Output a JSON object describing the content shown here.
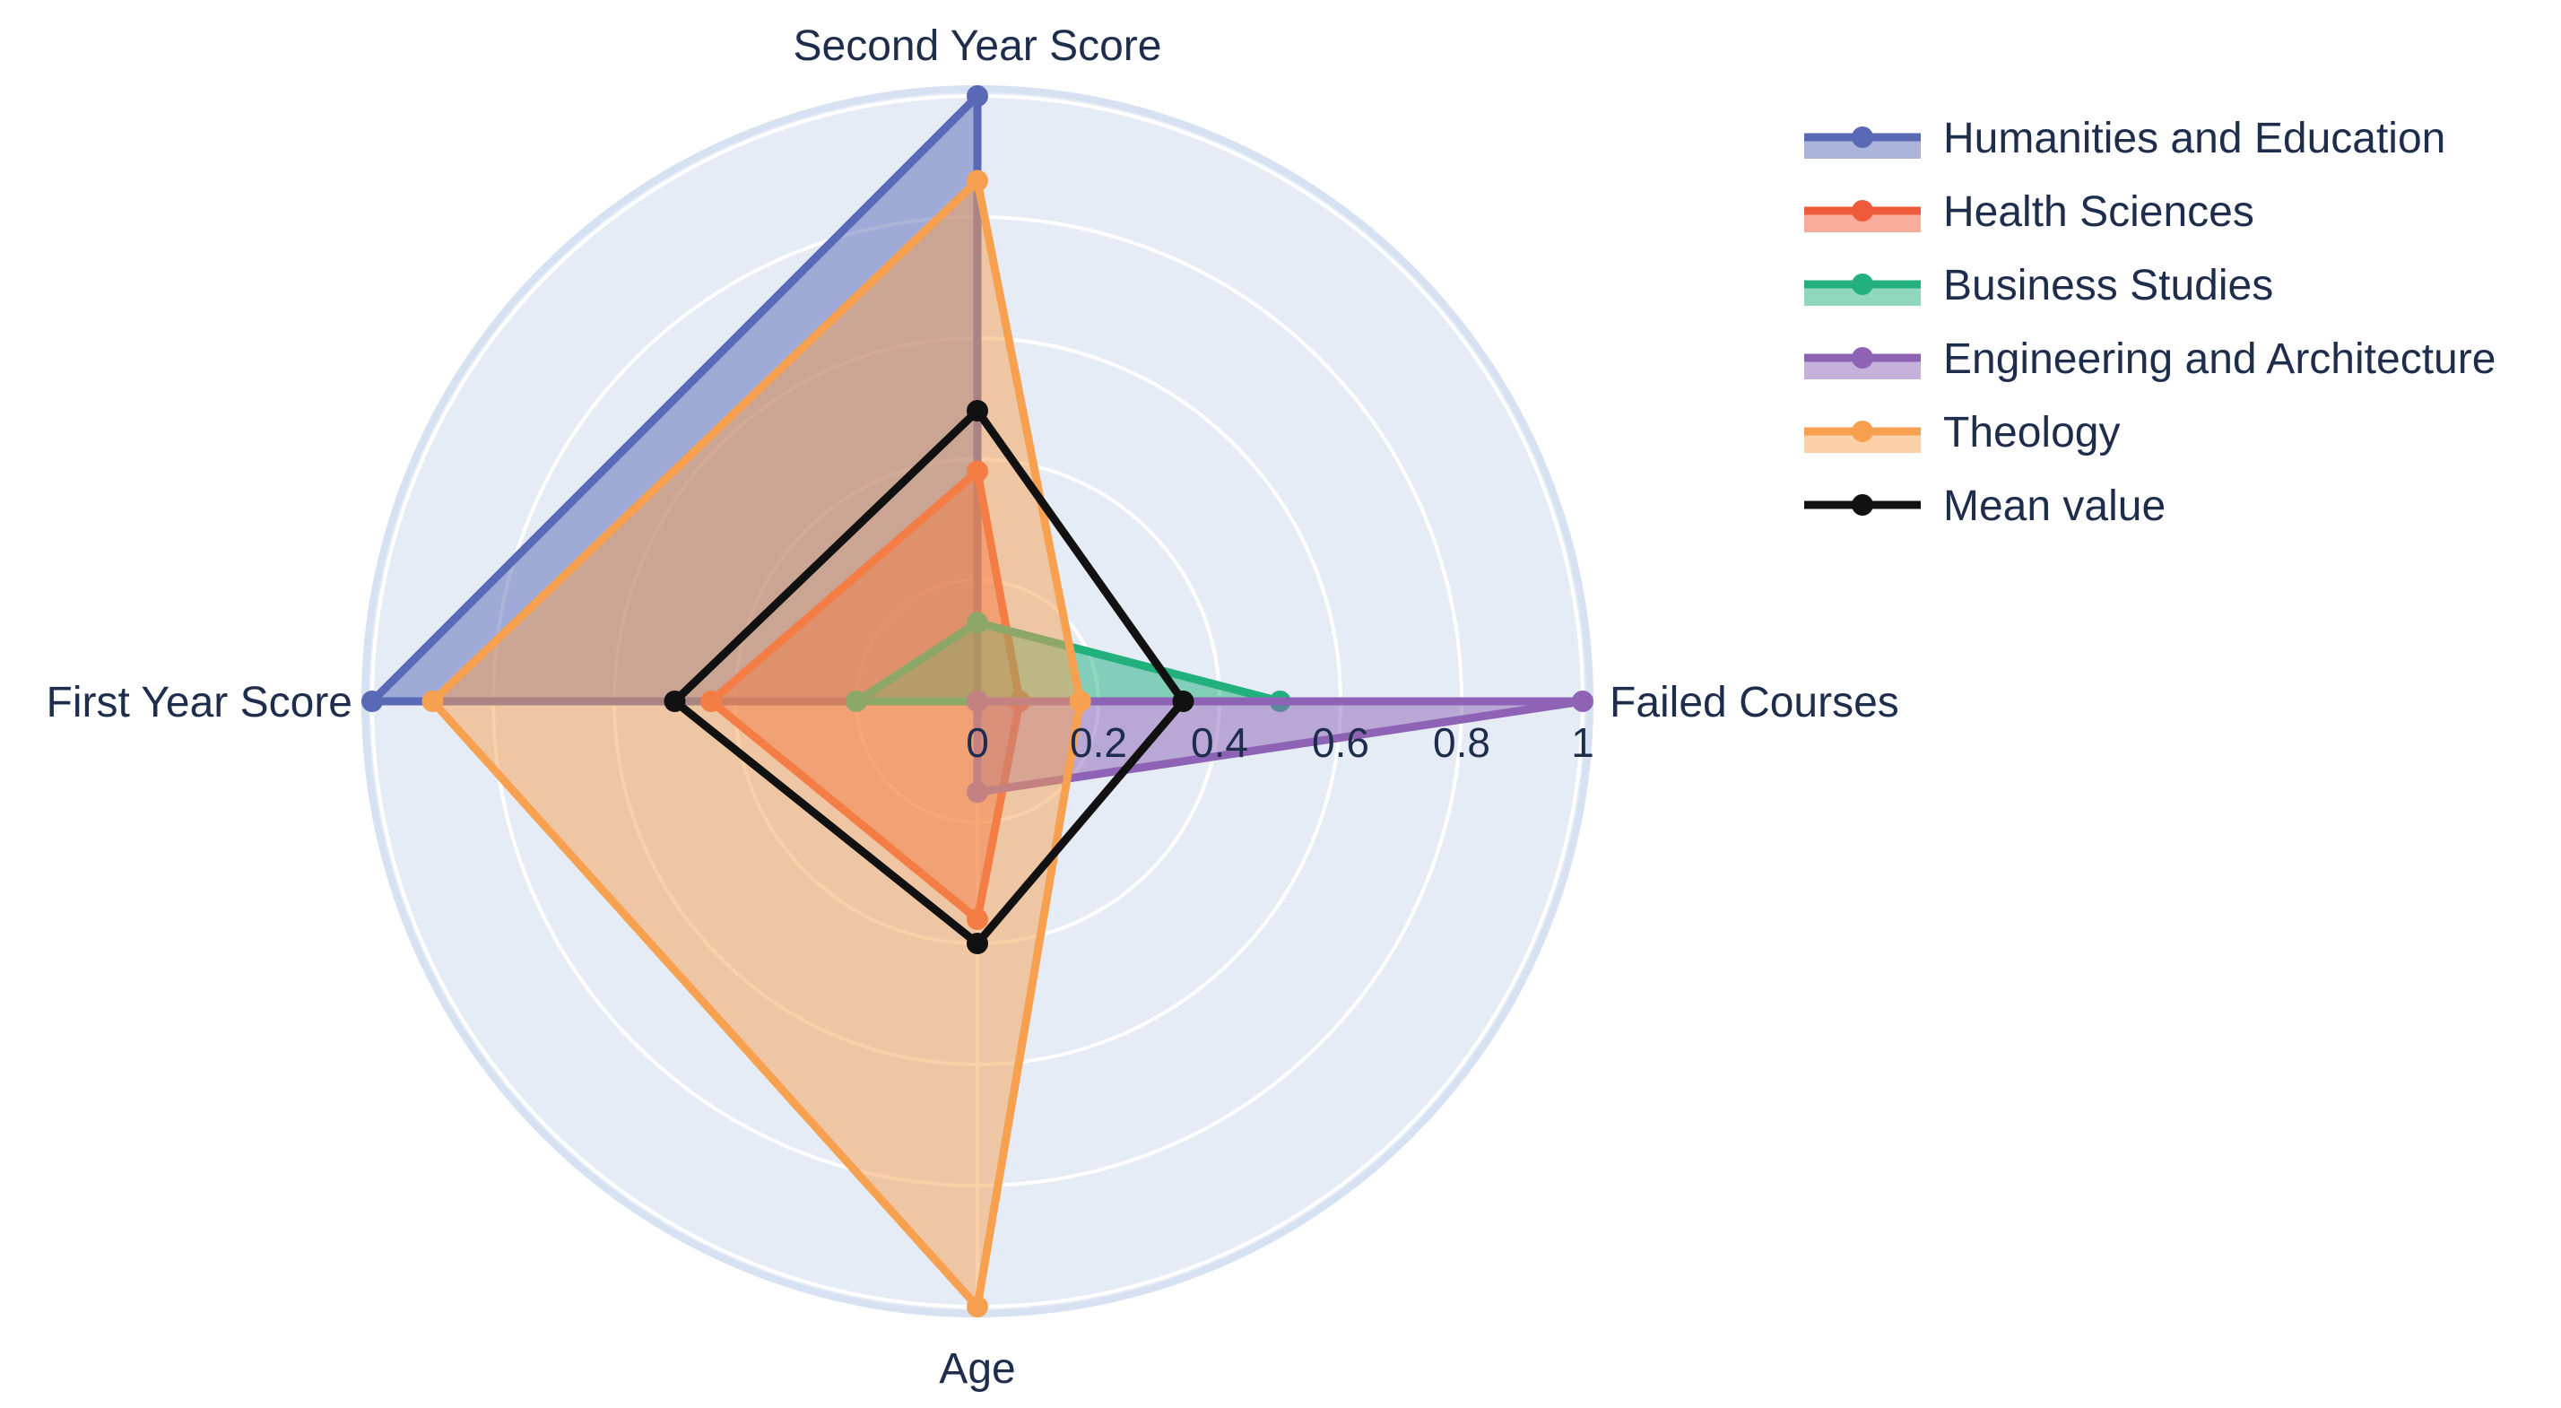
{
  "chart_data": {
    "type": "radar",
    "axes": [
      "Failed Courses",
      "Second Year Score",
      "First Year Score",
      "Age"
    ],
    "radial_range": [
      0,
      1
    ],
    "radial_ticks": [
      "0",
      "0.2",
      "0.4",
      "0.6",
      "0.8",
      "1"
    ],
    "legend_position": "top-right",
    "series": [
      {
        "name": "Humanities and Education",
        "color": "#5a69b5",
        "fill": true,
        "values": [
          0.0,
          1.0,
          1.0,
          0.0
        ]
      },
      {
        "name": "Health Sciences",
        "color": "#ef5a3a",
        "fill": true,
        "values": [
          0.07,
          0.38,
          0.44,
          0.36
        ]
      },
      {
        "name": "Business Studies",
        "color": "#22b07d",
        "fill": true,
        "values": [
          0.5,
          0.13,
          0.2,
          0.0
        ]
      },
      {
        "name": "Engineering and Architecture",
        "color": "#8e63b5",
        "fill": true,
        "values": [
          1.0,
          0.0,
          0.0,
          0.15
        ]
      },
      {
        "name": "Theology",
        "color": "#f7a04f",
        "fill": true,
        "values": [
          0.17,
          0.86,
          0.9,
          1.0
        ]
      },
      {
        "name": "Mean value",
        "color": "#111111",
        "fill": false,
        "values": [
          0.34,
          0.48,
          0.5,
          0.4
        ]
      }
    ]
  }
}
